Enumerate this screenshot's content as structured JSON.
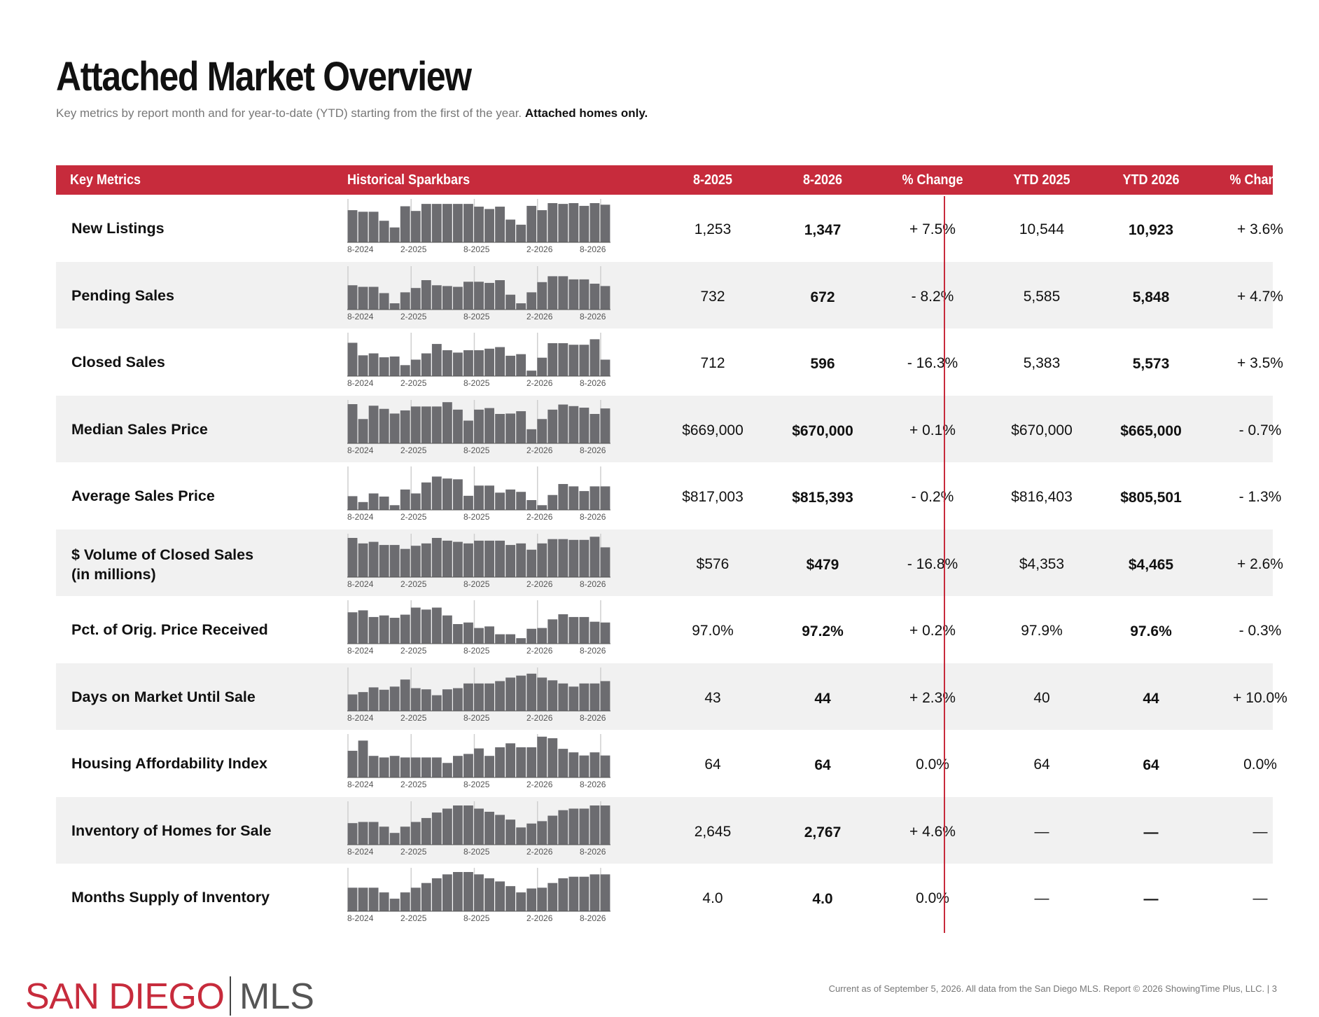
{
  "page": {
    "title": "Attached Market Overview",
    "subtitle_plain": "Key metrics by report month and for year-to-date (YTD) starting from the first of the year.",
    "subtitle_bold": "Attached homes only."
  },
  "table": {
    "headers": {
      "metric": "Key Metrics",
      "spark": "Historical Sparkbars",
      "m1": "8-2025",
      "m2": "8-2026",
      "mchg": "% Change",
      "y1": "YTD 2025",
      "y2": "YTD 2026",
      "ychg": "% Change"
    },
    "axis_labels": [
      "8-2024",
      "2-2025",
      "8-2025",
      "2-2026",
      "8-2026"
    ],
    "rows": [
      {
        "metric": "New Listings",
        "metric_line2": "",
        "m1": "1,253",
        "m2": "1,347",
        "mchg": "+ 7.5%",
        "y1": "10,544",
        "y2": "10,923",
        "ychg": "+ 3.6%",
        "spark": [
          0.82,
          0.78,
          0.78,
          0.55,
          0.38,
          0.92,
          0.8,
          0.98,
          0.98,
          0.98,
          0.98,
          0.98,
          0.91,
          0.85,
          0.91,
          0.58,
          0.45,
          0.93,
          0.82,
          1.0,
          0.98,
          1.0,
          0.93,
          1.0,
          0.96
        ]
      },
      {
        "metric": "Pending Sales",
        "metric_line2": "",
        "m1": "732",
        "m2": "672",
        "mchg": "- 8.2%",
        "y1": "5,585",
        "y2": "5,848",
        "ychg": "+ 4.7%",
        "spark": [
          0.62,
          0.58,
          0.58,
          0.42,
          0.16,
          0.44,
          0.55,
          0.75,
          0.62,
          0.6,
          0.58,
          0.71,
          0.71,
          0.68,
          0.75,
          0.38,
          0.16,
          0.44,
          0.7,
          0.85,
          0.85,
          0.77,
          0.77,
          0.66,
          0.6
        ]
      },
      {
        "metric": "Closed Sales",
        "metric_line2": "",
        "m1": "712",
        "m2": "596",
        "mchg": "- 16.3%",
        "y1": "5,383",
        "y2": "5,573",
        "ychg": "+ 3.5%",
        "spark": [
          0.85,
          0.53,
          0.58,
          0.48,
          0.5,
          0.28,
          0.42,
          0.58,
          0.82,
          0.66,
          0.6,
          0.66,
          0.66,
          0.7,
          0.74,
          0.52,
          0.56,
          0.14,
          0.47,
          0.84,
          0.84,
          0.8,
          0.8,
          0.94,
          0.42
        ]
      },
      {
        "metric": "Median Sales Price",
        "metric_line2": "",
        "m1": "$669,000",
        "m2": "$670,000",
        "mchg": "+ 0.1%",
        "y1": "$670,000",
        "y2": "$665,000",
        "ychg": "- 0.7%",
        "spark": [
          1.0,
          0.62,
          0.96,
          0.88,
          0.76,
          0.84,
          0.94,
          0.94,
          0.94,
          1.05,
          0.86,
          0.58,
          0.86,
          0.9,
          0.75,
          0.76,
          0.82,
          0.36,
          0.62,
          0.86,
          0.99,
          0.95,
          0.91,
          0.75,
          0.89
        ]
      },
      {
        "metric": "Average Sales Price",
        "metric_line2": "",
        "m1": "$817,003",
        "m2": "$815,393",
        "mchg": "- 0.2%",
        "y1": "$816,403",
        "y2": "$805,501",
        "ychg": "- 1.3%",
        "spark": [
          0.35,
          0.2,
          0.42,
          0.34,
          0.12,
          0.52,
          0.42,
          0.7,
          0.85,
          0.8,
          0.78,
          0.36,
          0.62,
          0.62,
          0.44,
          0.52,
          0.46,
          0.25,
          0.12,
          0.38,
          0.66,
          0.6,
          0.48,
          0.6,
          0.6
        ]
      },
      {
        "metric": "$ Volume of Closed Sales",
        "metric_line2": "(in millions)",
        "m1": "$576",
        "m2": "$479",
        "mchg": "- 16.8%",
        "y1": "$4,353",
        "y2": "$4,465",
        "ychg": "+ 2.6%",
        "spark": [
          1.0,
          0.86,
          0.9,
          0.82,
          0.82,
          0.72,
          0.8,
          0.86,
          1.0,
          0.93,
          0.9,
          0.86,
          0.93,
          0.93,
          0.93,
          0.82,
          0.86,
          0.7,
          0.86,
          0.97,
          0.97,
          0.95,
          0.95,
          1.03,
          0.76
        ]
      },
      {
        "metric": "Pct. of Orig. Price Received",
        "metric_line2": "",
        "m1": "97.0%",
        "m2": "97.2%",
        "mchg": "+ 0.2%",
        "y1": "97.9%",
        "y2": "97.6%",
        "ychg": "- 0.3%",
        "spark": [
          0.8,
          0.85,
          0.68,
          0.72,
          0.66,
          0.74,
          0.92,
          0.87,
          0.92,
          0.72,
          0.5,
          0.54,
          0.4,
          0.44,
          0.24,
          0.24,
          0.14,
          0.38,
          0.4,
          0.62,
          0.75,
          0.68,
          0.68,
          0.56,
          0.54
        ]
      },
      {
        "metric": "Days on Market Until Sale",
        "metric_line2": "",
        "m1": "43",
        "m2": "44",
        "mchg": "+ 2.3%",
        "y1": "40",
        "y2": "44",
        "ychg": "+ 10.0%",
        "spark": [
          0.42,
          0.48,
          0.6,
          0.54,
          0.62,
          0.8,
          0.58,
          0.55,
          0.4,
          0.55,
          0.58,
          0.7,
          0.7,
          0.7,
          0.76,
          0.85,
          0.9,
          0.95,
          0.85,
          0.78,
          0.7,
          0.62,
          0.7,
          0.7,
          0.76
        ]
      },
      {
        "metric": "Housing Affordability Index",
        "metric_line2": "",
        "m1": "64",
        "m2": "64",
        "mchg": "0.0%",
        "y1": "64",
        "y2": "64",
        "ychg": "0.0%",
        "spark": [
          0.68,
          0.94,
          0.55,
          0.51,
          0.55,
          0.51,
          0.51,
          0.51,
          0.51,
          0.37,
          0.55,
          0.6,
          0.74,
          0.55,
          0.77,
          0.87,
          0.77,
          0.77,
          1.04,
          1.0,
          0.73,
          0.64,
          0.56,
          0.64,
          0.56
        ]
      },
      {
        "metric": "Inventory of Homes for Sale",
        "metric_line2": "",
        "m1": "2,645",
        "m2": "2,767",
        "mchg": "+ 4.6%",
        "y1": "—",
        "y2": "—",
        "ychg": "—",
        "spark": [
          0.55,
          0.58,
          0.58,
          0.46,
          0.3,
          0.46,
          0.58,
          0.68,
          0.82,
          0.92,
          1.0,
          1.0,
          0.92,
          0.84,
          0.76,
          0.64,
          0.44,
          0.54,
          0.6,
          0.74,
          0.88,
          0.92,
          0.92,
          1.0,
          1.0
        ]
      },
      {
        "metric": "Months Supply of Inventory",
        "metric_line2": "",
        "m1": "4.0",
        "m2": "4.0",
        "mchg": "0.0%",
        "y1": "—",
        "y2": "—",
        "ychg": "—",
        "spark": [
          0.6,
          0.6,
          0.6,
          0.48,
          0.32,
          0.48,
          0.6,
          0.72,
          0.84,
          0.94,
          1.0,
          1.0,
          0.94,
          0.84,
          0.76,
          0.64,
          0.48,
          0.58,
          0.6,
          0.72,
          0.84,
          0.88,
          0.88,
          0.94,
          0.94
        ]
      }
    ]
  },
  "branding": {
    "logo_left": "SAN DIEGO",
    "logo_right": "MLS"
  },
  "footer": {
    "text": "Current as of September 5, 2026. All data from the San Diego MLS. Report © 2026 ShowingTime Plus, LLC.  |  3"
  },
  "colors": {
    "accent_red": "#c72b3c",
    "bar_gray": "#6c6c70",
    "alt_row": "#f1f1f1"
  }
}
